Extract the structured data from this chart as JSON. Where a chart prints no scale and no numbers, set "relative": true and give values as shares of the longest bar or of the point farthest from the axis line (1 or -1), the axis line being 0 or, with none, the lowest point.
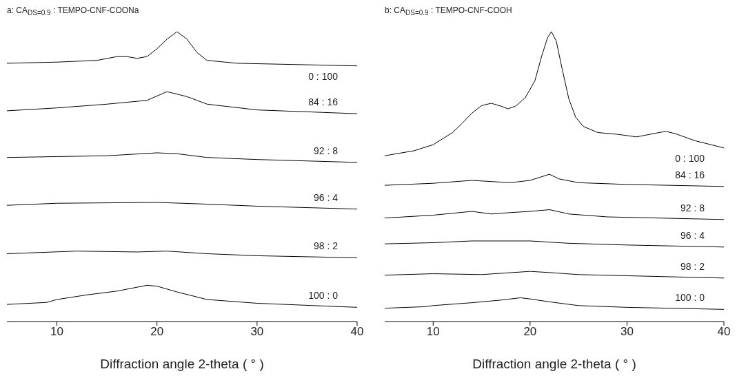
{
  "chart_data": [
    {
      "type": "line",
      "title": "a: CA$_{DS=0.9}$ : TEMPO-CNF-COONa",
      "xlabel": "Diffraction angle 2-theta ( ° )",
      "relative": true,
      "xlim": [
        5,
        40
      ],
      "xticks": [
        10,
        20,
        30,
        40
      ],
      "tick_labels": "x",
      "grid": false,
      "legend": false,
      "marker": "none",
      "line_style": "solid",
      "series": [
        {
          "name": "0 : 100",
          "color": "#000000",
          "x": [
            5,
            10,
            14,
            16,
            17,
            18,
            19,
            20,
            21,
            22,
            23,
            24,
            25,
            28,
            32,
            40
          ],
          "values": [
            0.891,
            0.895,
            0.901,
            0.914,
            0.914,
            0.908,
            0.914,
            0.941,
            0.974,
            1.0,
            0.974,
            0.928,
            0.901,
            0.891,
            0.888,
            0.882
          ]
        },
        {
          "name": "84 : 16",
          "color": "#000000",
          "x": [
            5,
            10,
            15,
            19,
            21,
            23,
            25,
            30,
            40
          ],
          "values": [
            0.727,
            0.737,
            0.75,
            0.763,
            0.793,
            0.776,
            0.75,
            0.73,
            0.717
          ]
        },
        {
          "name": "92 : 8",
          "color": "#000000",
          "x": [
            5,
            10,
            15,
            20,
            22,
            25,
            30,
            40
          ],
          "values": [
            0.566,
            0.569,
            0.572,
            0.582,
            0.579,
            0.566,
            0.559,
            0.549
          ]
        },
        {
          "name": "96 : 4",
          "color": "#000000",
          "x": [
            5,
            10,
            20,
            25,
            30,
            40
          ],
          "values": [
            0.401,
            0.408,
            0.411,
            0.405,
            0.398,
            0.388
          ]
        },
        {
          "name": "98 : 2",
          "color": "#000000",
          "x": [
            5,
            12,
            18,
            21,
            25,
            30,
            40
          ],
          "values": [
            0.234,
            0.243,
            0.24,
            0.243,
            0.234,
            0.227,
            0.22
          ]
        },
        {
          "name": "100 : 0",
          "color": "#000000",
          "x": [
            5,
            9,
            10,
            13,
            16,
            19,
            20,
            22,
            25,
            30,
            40
          ],
          "values": [
            0.059,
            0.066,
            0.076,
            0.092,
            0.105,
            0.125,
            0.122,
            0.102,
            0.076,
            0.063,
            0.049
          ]
        }
      ]
    },
    {
      "type": "line",
      "title": "b: CA$_{DS=0.9}$ : TEMPO-CNF-COOH",
      "xlabel": "Diffraction angle 2-theta ( ° )",
      "relative": true,
      "xlim": [
        5,
        40
      ],
      "xticks": [
        10,
        20,
        30,
        40
      ],
      "tick_labels": "x",
      "grid": false,
      "legend": false,
      "marker": "none",
      "line_style": "solid",
      "series": [
        {
          "name": "0 : 100",
          "color": "#000000",
          "x": [
            5,
            8,
            10,
            12,
            13,
            14,
            15,
            16,
            17,
            17.7,
            18.5,
            19.5,
            20.5,
            21.2,
            21.8,
            22.2,
            22.7,
            23.3,
            24,
            24.7,
            25.5,
            27,
            29,
            31,
            33,
            34,
            35,
            37,
            40
          ],
          "values": [
            0.572,
            0.589,
            0.61,
            0.652,
            0.684,
            0.719,
            0.745,
            0.753,
            0.743,
            0.734,
            0.743,
            0.772,
            0.831,
            0.916,
            0.979,
            1.0,
            0.968,
            0.873,
            0.768,
            0.705,
            0.673,
            0.652,
            0.646,
            0.637,
            0.65,
            0.656,
            0.648,
            0.624,
            0.599
          ]
        },
        {
          "name": "84 : 16",
          "color": "#000000",
          "x": [
            5,
            10,
            14,
            16,
            18,
            20,
            22,
            23,
            25,
            30,
            40
          ],
          "values": [
            0.47,
            0.477,
            0.487,
            0.483,
            0.479,
            0.487,
            0.508,
            0.492,
            0.479,
            0.473,
            0.466
          ]
        },
        {
          "name": "92 : 8",
          "color": "#000000",
          "x": [
            5,
            10,
            14,
            16,
            18,
            20,
            22,
            24,
            28,
            40
          ],
          "values": [
            0.357,
            0.367,
            0.38,
            0.371,
            0.376,
            0.38,
            0.386,
            0.371,
            0.361,
            0.352
          ]
        },
        {
          "name": "96 : 4",
          "color": "#000000",
          "x": [
            5,
            10,
            14,
            20,
            24,
            30,
            40
          ],
          "values": [
            0.268,
            0.272,
            0.278,
            0.278,
            0.27,
            0.264,
            0.257
          ]
        },
        {
          "name": "98 : 2",
          "color": "#000000",
          "x": [
            5,
            10,
            15,
            20,
            22,
            25,
            30,
            40
          ],
          "values": [
            0.16,
            0.165,
            0.162,
            0.173,
            0.169,
            0.162,
            0.158,
            0.15
          ]
        },
        {
          "name": "100 : 0",
          "color": "#000000",
          "x": [
            5,
            9,
            10,
            14,
            17,
            19,
            20,
            22,
            25,
            30,
            40
          ],
          "values": [
            0.046,
            0.051,
            0.055,
            0.065,
            0.074,
            0.082,
            0.078,
            0.068,
            0.055,
            0.049,
            0.042
          ]
        }
      ]
    }
  ]
}
